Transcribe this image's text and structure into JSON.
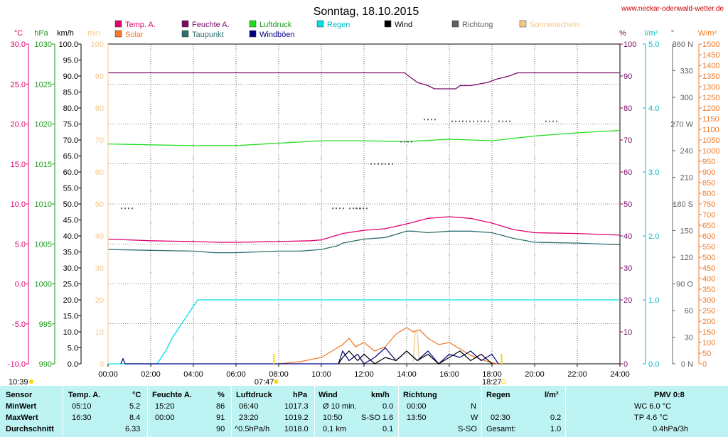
{
  "title": "Sonntag, 18.10.2015",
  "site": "www.neckar-odenwald-wetter.de",
  "colors": {
    "temp": "#e0006e",
    "feuchte": "#7a0a66",
    "luftdruck": "#22dd22",
    "regen": "#00e0e6",
    "wind": "#000000",
    "richtung": "#606060",
    "sonnenschein": "#f5c88a",
    "solar": "#f07a28",
    "taupunkt": "#2f6e6e",
    "windboeen": "#000080",
    "grid": "#000000"
  },
  "legend": [
    {
      "label": "Temp. A.",
      "color": "#e0006e",
      "text_color": "#e0006e"
    },
    {
      "label": "Feuchte A.",
      "color": "#7a0a66",
      "text_color": "#7a0a66"
    },
    {
      "label": "Luftdruck",
      "color": "#22dd22",
      "text_color": "#1a9a1a"
    },
    {
      "label": "Regen",
      "color": "#00e0e6",
      "text_color": "#00c0cc"
    },
    {
      "label": "Wind",
      "color": "#000000",
      "text_color": "#000000"
    },
    {
      "label": "Richtung",
      "color": "#606060",
      "text_color": "#606060"
    },
    {
      "label": "Sonnenschein",
      "color": "#f5c88a",
      "text_color": "#f5c88a"
    },
    {
      "label": "Solar",
      "color": "#f07a28",
      "text_color": "#f07a28"
    },
    {
      "label": "Taupunkt",
      "color": "#2f6e6e",
      "text_color": "#2f6e6e"
    },
    {
      "label": "Windböen",
      "color": "#000080",
      "text_color": "#000080"
    }
  ],
  "axes": {
    "temp": {
      "unit": "°C",
      "color": "#e0006e",
      "ticks": [
        "30.0",
        "25.0",
        "20.0",
        "15.0",
        "10.0",
        "5.0",
        "0.0",
        "-5.0",
        "-10.0"
      ]
    },
    "hpa": {
      "unit": "hPa",
      "color": "#1a9a1a",
      "ticks": [
        "1030",
        "1025",
        "1020",
        "1015",
        "1010",
        "1005",
        "1000",
        "995",
        "990"
      ]
    },
    "kmh": {
      "unit": "km/h",
      "color": "#000000",
      "ticks": [
        "100.0",
        "95.0",
        "90.0",
        "85.0",
        "80.0",
        "75.0",
        "70.0",
        "65.0",
        "60.0",
        "55.0",
        "50.0",
        "45.0",
        "40.0",
        "35.0",
        "30.0",
        "25.0",
        "20.0",
        "15.0",
        "10.0",
        "5.0",
        "0.0"
      ]
    },
    "min": {
      "unit": "min",
      "color": "#f5c88a",
      "ticks": [
        "100",
        "90",
        "80",
        "70",
        "60",
        "50",
        "40",
        "30",
        "20",
        "10",
        "0"
      ]
    },
    "pct": {
      "unit": "%",
      "color": "#7a0a66",
      "ticks": [
        "100",
        "90",
        "80",
        "70",
        "60",
        "50",
        "40",
        "30",
        "20",
        "10",
        "0"
      ]
    },
    "rain": {
      "unit": "l/m²",
      "color": "#00c0cc",
      "ticks": [
        "5.0",
        "4.0",
        "3.0",
        "2.0",
        "1.0",
        "0.0"
      ]
    },
    "dir": {
      "unit": "°",
      "color": "#606060",
      "ticks": [
        "360 N",
        "330",
        "300",
        "270 W",
        "240",
        "210",
        "180 S",
        "150",
        "120",
        "90 O",
        "60",
        "30",
        "0 N"
      ]
    },
    "wm2": {
      "unit": "W/m²",
      "color": "#f07a28",
      "ticks": [
        "1500",
        "1450",
        "1400",
        "1350",
        "1300",
        "1250",
        "1200",
        "1150",
        "1100",
        "1050",
        "1000",
        "950",
        "900",
        "850",
        "800",
        "750",
        "700",
        "650",
        "600",
        "550",
        "500",
        "450",
        "400",
        "350",
        "300",
        "250",
        "200",
        "150",
        "100",
        "50",
        "0"
      ]
    },
    "time": [
      "00:00",
      "02:00",
      "04:00",
      "06:00",
      "08:00",
      "10:00",
      "12:00",
      "14:00",
      "16:00",
      "18:00",
      "20:00",
      "22:00",
      "24:00"
    ]
  },
  "sun": {
    "moonrise": "10:39",
    "sunrise": "07:47",
    "sunset": "18:27"
  },
  "chart_data": {
    "type": "line",
    "x_unit": "hours",
    "series": [
      {
        "name": "Temp. A.",
        "axis": "temp",
        "x": [
          0,
          2,
          4,
          5.2,
          6,
          8,
          9.5,
          10,
          11,
          12,
          13,
          14,
          15,
          16,
          17,
          18,
          19,
          20,
          22,
          24
        ],
        "y": [
          5.6,
          5.4,
          5.3,
          5.2,
          5.2,
          5.3,
          5.4,
          5.5,
          6.3,
          6.7,
          6.9,
          7.5,
          8.2,
          8.4,
          8.2,
          7.6,
          6.8,
          6.4,
          6.3,
          6.1
        ]
      },
      {
        "name": "Feuchte A.",
        "axis": "pct",
        "x": [
          0,
          6,
          10,
          13.9,
          14.1,
          14.5,
          15,
          15.3,
          16.3,
          16.5,
          17,
          17.8,
          18.2,
          18.8,
          19.2,
          20,
          22,
          24
        ],
        "y": [
          91,
          91,
          91,
          91,
          90,
          88,
          87,
          86,
          86,
          87,
          87,
          88,
          89,
          90,
          91,
          91,
          91,
          91
        ]
      },
      {
        "name": "Luftdruck",
        "axis": "hpa",
        "x": [
          0,
          2,
          4,
          6,
          8,
          10,
          12,
          14,
          16,
          18,
          20,
          22,
          24
        ],
        "y": [
          1017.5,
          1017.4,
          1017.3,
          1017.3,
          1017.6,
          1017.9,
          1017.9,
          1017.8,
          1018.1,
          1017.9,
          1018.5,
          1018.9,
          1019.2
        ]
      },
      {
        "name": "Taupunkt",
        "axis": "temp",
        "x": [
          0,
          2,
          4,
          5,
          6,
          7,
          8,
          9,
          10,
          10.8,
          11,
          12,
          13,
          14,
          14.3,
          15,
          16,
          17,
          18,
          19,
          20,
          22,
          24
        ],
        "y": [
          4.3,
          4.2,
          4.1,
          3.9,
          3.9,
          4.0,
          4.1,
          4.1,
          4.3,
          4.8,
          5.1,
          5.6,
          5.8,
          6.6,
          6.6,
          6.4,
          6.6,
          6.6,
          6.4,
          5.7,
          5.2,
          5.1,
          4.9
        ]
      },
      {
        "name": "Regen",
        "axis": "rain",
        "x": [
          0,
          2.3,
          2.7,
          3,
          3.4,
          3.8,
          4.2,
          24
        ],
        "y": [
          0,
          0,
          0.2,
          0.4,
          0.6,
          0.8,
          1.0,
          1.0
        ]
      },
      {
        "name": "Solar",
        "axis": "wm2",
        "x": [
          8,
          9,
          10,
          10.5,
          11,
          11.3,
          11.6,
          12,
          12.5,
          13,
          13.5,
          14,
          14.3,
          14.6,
          15,
          15.5,
          16,
          16.5,
          17,
          17.5,
          18,
          18.3
        ],
        "y": [
          0,
          10,
          30,
          60,
          90,
          120,
          80,
          100,
          60,
          80,
          140,
          170,
          150,
          160,
          120,
          90,
          100,
          70,
          40,
          20,
          5,
          0
        ]
      },
      {
        "name": "Sonnenschein",
        "axis": "min",
        "x": [
          14.3,
          14.4,
          14.5,
          14.6
        ],
        "y": [
          0,
          10,
          10,
          0
        ]
      },
      {
        "name": "Wind",
        "axis": "kmh",
        "x": [
          10.8,
          11,
          11.3,
          11.7,
          12,
          12.5,
          13,
          13.5,
          14,
          14.5,
          15,
          15.5,
          16,
          16.5,
          17,
          17.5,
          18
        ],
        "y": [
          0,
          2,
          4,
          1,
          3,
          0,
          2,
          1,
          4,
          1,
          3,
          0,
          2,
          4,
          1,
          3,
          0
        ]
      },
      {
        "name": "Windböen",
        "axis": "kmh",
        "x": [
          0.6,
          0.7,
          0.8,
          10.8,
          11,
          11.3,
          11.7,
          12,
          12.5,
          13,
          13.5,
          14,
          14.5,
          15,
          15.5,
          16,
          16.5,
          17,
          17.5,
          18,
          18.3
        ],
        "y": [
          0,
          1.6,
          0,
          0,
          4,
          1,
          3,
          0,
          2,
          5,
          1,
          4,
          1,
          4,
          0,
          3,
          2,
          4,
          1,
          3,
          0
        ]
      },
      {
        "name": "Richtung",
        "axis": "dir",
        "type": "scatter",
        "x": [
          0.6,
          10.5,
          11.3,
          11.6,
          12.3,
          12.8,
          13.7,
          14.8,
          16.1,
          16.6,
          17.3,
          18.3,
          20.5
        ],
        "y": [
          175,
          175,
          175,
          175,
          225,
          225,
          250,
          275,
          273,
          273,
          273,
          273,
          273
        ]
      }
    ]
  },
  "stats": {
    "headers": [
      {
        "label": "Sensor"
      },
      {
        "label": "Temp. A.",
        "unit": "°C"
      },
      {
        "label": "Feuchte A.",
        "unit": "%"
      },
      {
        "label": "Luftdruck",
        "unit": "hPa"
      },
      {
        "label": "Wind",
        "unit": "km/h"
      },
      {
        "label": "Richtung"
      },
      {
        "label": "Regen",
        "unit": "l/m²"
      },
      {
        "label": "PMV 0:8"
      }
    ],
    "rows": [
      {
        "label": "MinWert",
        "temp_time": "05:10",
        "temp": "5.2",
        "feuchte_time": "15:20",
        "feuchte": "86",
        "druck_time": "06:40",
        "druck": "1017.3",
        "wind_label": "Ø 10 min.",
        "wind": "0.0",
        "richt_time": "00:00",
        "richt": "N",
        "regen_time": "",
        "regen": "",
        "pmv": "WC 6.0 °C"
      },
      {
        "label": "MaxWert",
        "temp_time": "16:30",
        "temp": "8.4",
        "feuchte_time": "00:00",
        "feuchte": "91",
        "druck_time": "23:20",
        "druck": "1019.2",
        "wind_label": "10:50",
        "wind": "S-SO 1.6",
        "richt_time": "13:50",
        "richt": "W",
        "regen_time": "02:30",
        "regen": "0.2",
        "pmv": "TP 4.6 °C"
      },
      {
        "label": "Durchschnitt",
        "temp_time": "",
        "temp": "6.33",
        "feuchte_time": "",
        "feuchte": "90",
        "druck_time": "^0.5hPa/h",
        "druck": "1018.0",
        "wind_label": "0,1 km",
        "wind": "0.1",
        "richt_time": "",
        "richt": "S-SO",
        "regen_time": "Gesamt:",
        "regen": "1.0",
        "pmv": "0.4hPa/3h"
      }
    ]
  }
}
